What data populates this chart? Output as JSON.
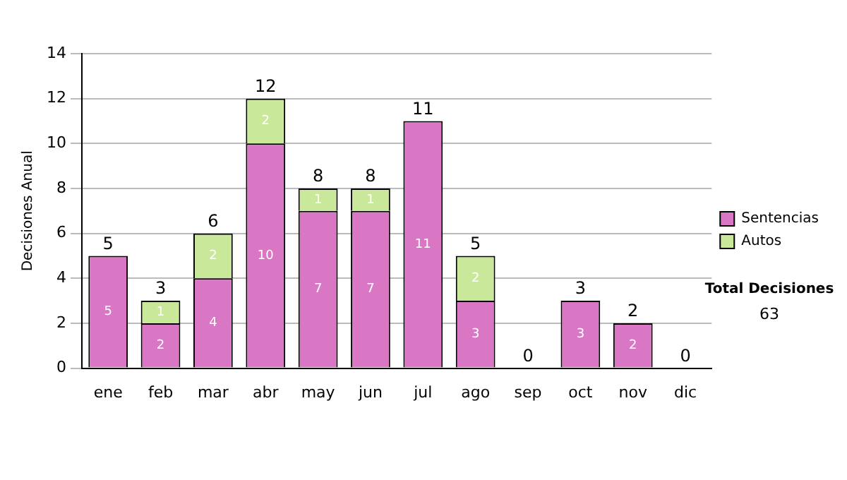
{
  "chart_data": {
    "type": "bar",
    "stacked": true,
    "ylabel": "Decisiones Anual",
    "categories": [
      "ene",
      "feb",
      "mar",
      "abr",
      "may",
      "jun",
      "jul",
      "ago",
      "sep",
      "oct",
      "nov",
      "dic"
    ],
    "series": [
      {
        "name": "Sentencias",
        "color": "#d977c4",
        "values": [
          5,
          2,
          4,
          10,
          7,
          7,
          11,
          3,
          0,
          3,
          2,
          0
        ],
        "value_labels": [
          "5",
          "2",
          "4",
          "10",
          "7",
          "7",
          "11",
          "3",
          null,
          "3",
          "2",
          null
        ]
      },
      {
        "name": "Autos",
        "color": "#c9e89a",
        "values": [
          0,
          1,
          2,
          2,
          1,
          1,
          0,
          2,
          0,
          0,
          0,
          0
        ],
        "value_labels": [
          null,
          "1",
          "2",
          "2",
          "1",
          "1",
          null,
          "2",
          null,
          null,
          null,
          null
        ]
      }
    ],
    "totals": [
      "5",
      "3",
      "6",
      "12",
      "8",
      "8",
      "11",
      "5",
      "0",
      "3",
      "2",
      "0"
    ],
    "ylim": [
      0,
      14
    ],
    "yticks": [
      0,
      2,
      4,
      6,
      8,
      10,
      12,
      14
    ],
    "grid": "y",
    "legend": "right",
    "annotations": [
      "Total Decisiones",
      "63"
    ]
  }
}
